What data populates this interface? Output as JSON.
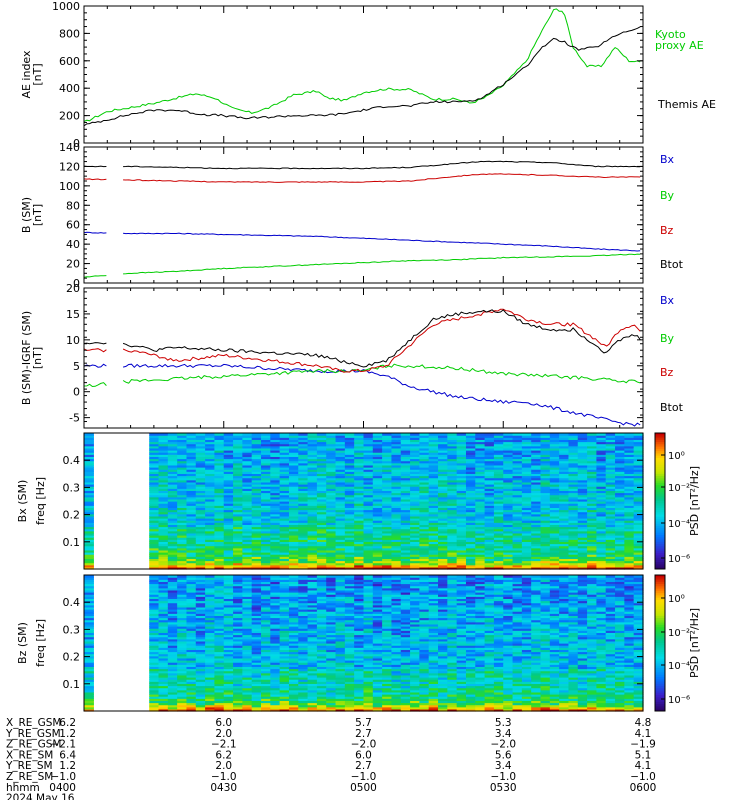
{
  "chart_data": [
    {
      "type": "line",
      "ylabel": "AE index\n[nT]",
      "ylim": [
        0,
        1000
      ],
      "yticks": [
        0,
        200,
        400,
        600,
        800,
        1000
      ],
      "xlim": [
        "04:00",
        "06:00"
      ],
      "series": [
        {
          "name": "Kyoto\nproxy AE",
          "color": "#00cc00",
          "x": [
            "04:00",
            "04:05",
            "04:10",
            "04:15",
            "04:20",
            "04:24",
            "04:28",
            "04:32",
            "04:36",
            "04:40",
            "04:45",
            "04:50",
            "04:52",
            "04:56",
            "05:00",
            "05:05",
            "05:10",
            "05:15",
            "05:20",
            "05:23",
            "05:26",
            "05:30",
            "05:35",
            "05:38",
            "05:41",
            "05:43",
            "05:45",
            "05:48",
            "05:51",
            "05:54",
            "05:57",
            "06:00"
          ],
          "y": [
            150,
            230,
            260,
            290,
            330,
            360,
            330,
            250,
            220,
            260,
            350,
            380,
            330,
            310,
            370,
            395,
            390,
            320,
            320,
            290,
            330,
            420,
            600,
            800,
            980,
            960,
            700,
            560,
            560,
            700,
            600,
            590
          ]
        },
        {
          "name": "Themis AE",
          "color": "#000000",
          "x": [
            "04:00",
            "04:05",
            "04:10",
            "04:15",
            "04:20",
            "04:25",
            "04:30",
            "04:35",
            "04:40",
            "04:45",
            "04:50",
            "04:55",
            "05:00",
            "05:05",
            "05:10",
            "05:15",
            "05:20",
            "05:25",
            "05:30",
            "05:35",
            "05:38",
            "05:41",
            "05:43",
            "05:46",
            "05:50",
            "05:55",
            "06:00"
          ],
          "y": [
            130,
            170,
            210,
            240,
            240,
            210,
            200,
            180,
            190,
            200,
            200,
            210,
            240,
            270,
            270,
            300,
            300,
            320,
            430,
            560,
            690,
            760,
            740,
            680,
            700,
            800,
            850
          ]
        }
      ]
    },
    {
      "type": "line",
      "ylabel": "B (SM)\n[nT]",
      "ylim": [
        0,
        140
      ],
      "yticks": [
        0,
        20,
        40,
        60,
        80,
        100,
        120,
        140
      ],
      "xlim": [
        "04:00",
        "06:00"
      ],
      "gap": [
        "04:05",
        "04:08"
      ],
      "series": [
        {
          "name": "Bx",
          "color": "#0000cc",
          "x": [
            "04:00",
            "04:10",
            "04:20",
            "04:30",
            "04:40",
            "04:50",
            "05:00",
            "05:10",
            "05:20",
            "05:30",
            "05:40",
            "05:50",
            "06:00"
          ],
          "y": [
            52,
            51,
            51,
            50,
            49,
            48,
            46,
            44,
            42,
            40,
            38,
            35,
            33
          ]
        },
        {
          "name": "By",
          "color": "#00cc00",
          "x": [
            "04:00",
            "04:10",
            "04:20",
            "04:30",
            "04:40",
            "04:50",
            "05:00",
            "05:10",
            "05:20",
            "05:30",
            "05:40",
            "05:50",
            "06:00"
          ],
          "y": [
            6,
            10,
            12,
            15,
            17,
            19,
            21,
            23,
            24,
            26,
            27,
            28,
            30
          ]
        },
        {
          "name": "Bz",
          "color": "#cc0000",
          "x": [
            "04:00",
            "04:10",
            "04:20",
            "04:30",
            "04:40",
            "04:50",
            "05:00",
            "05:10",
            "05:20",
            "05:25",
            "05:30",
            "05:40",
            "05:50",
            "06:00"
          ],
          "y": [
            107,
            106,
            105,
            104,
            104,
            104,
            104,
            105,
            110,
            112,
            112,
            111,
            109,
            109
          ]
        },
        {
          "name": "Btot",
          "color": "#000000",
          "x": [
            "04:00",
            "04:10",
            "04:20",
            "04:30",
            "04:40",
            "04:50",
            "05:00",
            "05:10",
            "05:20",
            "05:25",
            "05:30",
            "05:40",
            "05:50",
            "06:00"
          ],
          "y": [
            120,
            120,
            119,
            118,
            118,
            118,
            118,
            119,
            123,
            125,
            125,
            124,
            120,
            120
          ]
        }
      ]
    },
    {
      "type": "line",
      "ylabel": "B (SM)-IGRF (SM)\n[nT]",
      "ylim": [
        -7,
        20
      ],
      "yticks": [
        -5,
        0,
        5,
        10,
        15,
        20
      ],
      "xlim": [
        "04:00",
        "06:00"
      ],
      "gap": [
        "04:05",
        "04:08"
      ],
      "series": [
        {
          "name": "Bx",
          "color": "#0000cc",
          "x": [
            "04:00",
            "04:05",
            "04:10",
            "04:20",
            "04:30",
            "04:40",
            "04:50",
            "04:55",
            "05:00",
            "05:05",
            "05:10",
            "05:20",
            "05:30",
            "05:35",
            "05:40",
            "05:45",
            "05:50",
            "05:55",
            "06:00"
          ],
          "y": [
            5,
            5,
            5,
            5,
            5,
            4.5,
            4,
            4,
            4,
            3,
            1,
            -1,
            -2,
            -2,
            -3,
            -4,
            -5,
            -6,
            -6.5
          ]
        },
        {
          "name": "By",
          "color": "#00cc00",
          "x": [
            "04:00",
            "04:05",
            "04:10",
            "04:20",
            "04:30",
            "04:40",
            "04:50",
            "05:00",
            "05:05",
            "05:10",
            "05:20",
            "05:30",
            "05:40",
            "05:50",
            "05:55",
            "06:00"
          ],
          "y": [
            1,
            1.5,
            2,
            2.5,
            3,
            3.5,
            4,
            4,
            5,
            5,
            4.5,
            3.5,
            3,
            2.5,
            2,
            2
          ]
        },
        {
          "name": "Bz",
          "color": "#cc0000",
          "x": [
            "04:00",
            "04:05",
            "04:10",
            "04:15",
            "04:20",
            "04:30",
            "04:40",
            "04:50",
            "04:55",
            "05:00",
            "05:05",
            "05:10",
            "05:15",
            "05:20",
            "05:25",
            "05:30",
            "05:35",
            "05:40",
            "05:45",
            "05:50",
            "05:52",
            "05:55",
            "05:58",
            "06:00"
          ],
          "y": [
            8,
            8,
            8,
            7,
            6,
            7,
            6,
            5,
            4,
            4,
            5,
            9,
            13,
            14,
            15,
            16,
            14,
            13,
            13,
            10,
            8.5,
            12,
            13,
            11
          ]
        },
        {
          "name": "Btot",
          "color": "#000000",
          "x": [
            "04:00",
            "04:05",
            "04:10",
            "04:15",
            "04:20",
            "04:30",
            "04:40",
            "04:50",
            "04:55",
            "05:00",
            "05:05",
            "05:10",
            "05:15",
            "05:20",
            "05:25",
            "05:30",
            "05:35",
            "05:40",
            "05:45",
            "05:50",
            "05:52",
            "05:55",
            "05:58",
            "06:00"
          ],
          "y": [
            9.5,
            9.5,
            9,
            8,
            8.5,
            8,
            7.5,
            7,
            6,
            5,
            6,
            10,
            14,
            15,
            15.5,
            15.5,
            13,
            12,
            12,
            9,
            7.5,
            10,
            11,
            10
          ]
        }
      ]
    },
    {
      "type": "heatmap",
      "ylabel": "Bx (SM)\nfreq  [Hz]",
      "ylim": [
        0,
        0.5
      ],
      "yticks": [
        0.1,
        0.2,
        0.3,
        0.4
      ],
      "xlim": [
        "04:00",
        "06:00"
      ],
      "colorbar_label": "PSD [nT²/Hz]",
      "colorbar_ticks": [
        "10⁰",
        "10⁻²",
        "10⁻⁴",
        "10⁻⁶"
      ]
    },
    {
      "type": "heatmap",
      "ylabel": "Bz (SM)\nfreq  [Hz]",
      "ylim": [
        0,
        0.5
      ],
      "yticks": [
        0.1,
        0.2,
        0.3,
        0.4
      ],
      "xlim": [
        "04:00",
        "06:00"
      ],
      "colorbar_label": "PSD [nT²/Hz]",
      "colorbar_ticks": [
        "10⁰",
        "10⁻²",
        "10⁻⁴",
        "10⁻⁶"
      ]
    }
  ],
  "ephemeris": {
    "rows": [
      {
        "label": "X_RE_GSM",
        "values": [
          "6.2",
          "6.0",
          "5.7",
          "5.3",
          "4.8"
        ]
      },
      {
        "label": "Y_RE_GSM",
        "values": [
          "1.2",
          "2.0",
          "2.7",
          "3.4",
          "4.1"
        ]
      },
      {
        "label": "Z_RE_GSM",
        "values": [
          "−2.1",
          "−2.1",
          "−2.0",
          "−2.0",
          "−1.9"
        ]
      },
      {
        "label": "X_RE_SM",
        "values": [
          "6.4",
          "6.2",
          "6.0",
          "5.6",
          "5.1"
        ]
      },
      {
        "label": "Y_RE_SM",
        "values": [
          "1.2",
          "2.0",
          "2.7",
          "3.4",
          "4.1"
        ]
      },
      {
        "label": "Z_RE_SM",
        "values": [
          "−1.0",
          "−1.0",
          "−1.0",
          "−1.0",
          "−1.0"
        ]
      },
      {
        "label": "hhmm",
        "values": [
          "0400",
          "0430",
          "0500",
          "0530",
          "0600"
        ]
      }
    ],
    "date": "2024 May 16"
  }
}
